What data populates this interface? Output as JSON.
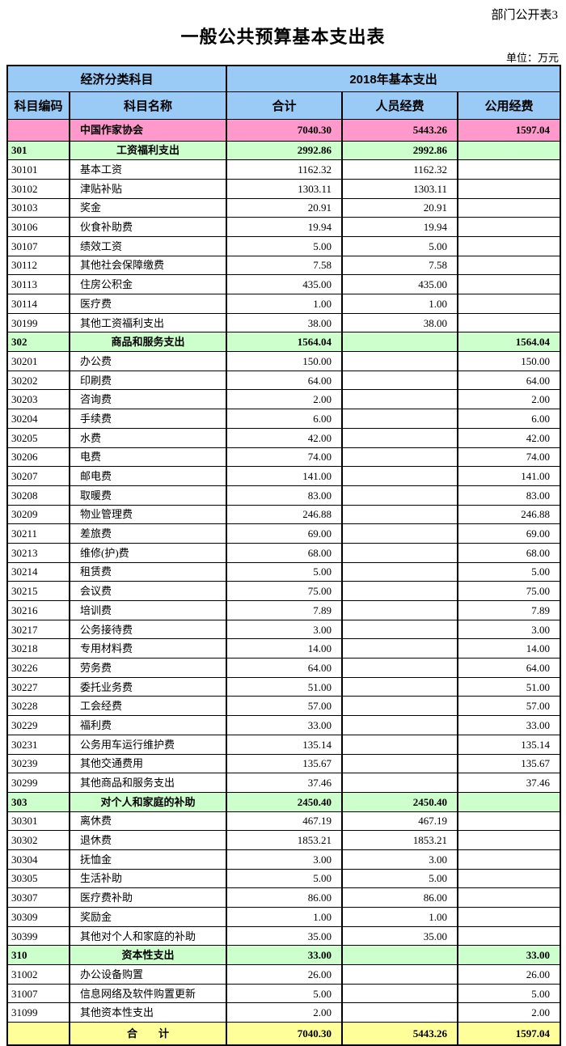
{
  "page": {
    "doc_label": "部门公开表3",
    "title": "一般公共预算基本支出表",
    "unit_note": "单位：万元"
  },
  "table": {
    "colors": {
      "header_bg": "#9ACBF7",
      "unit_bg": "#FF99CC",
      "section_bg": "#CCFFCC",
      "total_bg": "#FFFF99",
      "border": "#000000"
    },
    "header": {
      "group_left": "经济分类科目",
      "group_right": "2018年基本支出",
      "columns": [
        "科目编码",
        "科目名称",
        "合计",
        "人员经费",
        "公用经费"
      ]
    },
    "rows": [
      {
        "type": "unit",
        "code": "",
        "name": "中国作家协会",
        "total": "7040.30",
        "personnel": "5443.26",
        "public": "1597.04"
      },
      {
        "type": "section",
        "code": "301",
        "name": "工资福利支出",
        "total": "2992.86",
        "personnel": "2992.86",
        "public": ""
      },
      {
        "type": "item",
        "code": "30101",
        "name": "基本工资",
        "total": "1162.32",
        "personnel": "1162.32",
        "public": ""
      },
      {
        "type": "item",
        "code": "30102",
        "name": "津贴补贴",
        "total": "1303.11",
        "personnel": "1303.11",
        "public": ""
      },
      {
        "type": "item",
        "code": "30103",
        "name": "奖金",
        "total": "20.91",
        "personnel": "20.91",
        "public": ""
      },
      {
        "type": "item",
        "code": "30106",
        "name": "伙食补助费",
        "total": "19.94",
        "personnel": "19.94",
        "public": ""
      },
      {
        "type": "item",
        "code": "30107",
        "name": "绩效工资",
        "total": "5.00",
        "personnel": "5.00",
        "public": ""
      },
      {
        "type": "item",
        "code": "30112",
        "name": "其他社会保障缴费",
        "total": "7.58",
        "personnel": "7.58",
        "public": ""
      },
      {
        "type": "item",
        "code": "30113",
        "name": "住房公积金",
        "total": "435.00",
        "personnel": "435.00",
        "public": ""
      },
      {
        "type": "item",
        "code": "30114",
        "name": "医疗费",
        "total": "1.00",
        "personnel": "1.00",
        "public": ""
      },
      {
        "type": "item",
        "code": "30199",
        "name": "其他工资福利支出",
        "total": "38.00",
        "personnel": "38.00",
        "public": ""
      },
      {
        "type": "section",
        "code": "302",
        "name": "商品和服务支出",
        "total": "1564.04",
        "personnel": "",
        "public": "1564.04"
      },
      {
        "type": "item",
        "code": "30201",
        "name": "办公费",
        "total": "150.00",
        "personnel": "",
        "public": "150.00"
      },
      {
        "type": "item",
        "code": "30202",
        "name": "印刷费",
        "total": "64.00",
        "personnel": "",
        "public": "64.00"
      },
      {
        "type": "item",
        "code": "30203",
        "name": "咨询费",
        "total": "2.00",
        "personnel": "",
        "public": "2.00"
      },
      {
        "type": "item",
        "code": "30204",
        "name": "手续费",
        "total": "6.00",
        "personnel": "",
        "public": "6.00"
      },
      {
        "type": "item",
        "code": "30205",
        "name": "水费",
        "total": "42.00",
        "personnel": "",
        "public": "42.00"
      },
      {
        "type": "item",
        "code": "30206",
        "name": "电费",
        "total": "74.00",
        "personnel": "",
        "public": "74.00"
      },
      {
        "type": "item",
        "code": "30207",
        "name": "邮电费",
        "total": "141.00",
        "personnel": "",
        "public": "141.00"
      },
      {
        "type": "item",
        "code": "30208",
        "name": "取暖费",
        "total": "83.00",
        "personnel": "",
        "public": "83.00"
      },
      {
        "type": "item",
        "code": "30209",
        "name": "物业管理费",
        "total": "246.88",
        "personnel": "",
        "public": "246.88"
      },
      {
        "type": "item",
        "code": "30211",
        "name": "差旅费",
        "total": "69.00",
        "personnel": "",
        "public": "69.00"
      },
      {
        "type": "item",
        "code": "30213",
        "name": "维修(护)费",
        "total": "68.00",
        "personnel": "",
        "public": "68.00"
      },
      {
        "type": "item",
        "code": "30214",
        "name": "租赁费",
        "total": "5.00",
        "personnel": "",
        "public": "5.00"
      },
      {
        "type": "item",
        "code": "30215",
        "name": "会议费",
        "total": "75.00",
        "personnel": "",
        "public": "75.00"
      },
      {
        "type": "item",
        "code": "30216",
        "name": "培训费",
        "total": "7.89",
        "personnel": "",
        "public": "7.89"
      },
      {
        "type": "item",
        "code": "30217",
        "name": "公务接待费",
        "total": "3.00",
        "personnel": "",
        "public": "3.00"
      },
      {
        "type": "item",
        "code": "30218",
        "name": "专用材料费",
        "total": "14.00",
        "personnel": "",
        "public": "14.00"
      },
      {
        "type": "item",
        "code": "30226",
        "name": "劳务费",
        "total": "64.00",
        "personnel": "",
        "public": "64.00"
      },
      {
        "type": "item",
        "code": "30227",
        "name": "委托业务费",
        "total": "51.00",
        "personnel": "",
        "public": "51.00"
      },
      {
        "type": "item",
        "code": "30228",
        "name": "工会经费",
        "total": "57.00",
        "personnel": "",
        "public": "57.00"
      },
      {
        "type": "item",
        "code": "30229",
        "name": "福利费",
        "total": "33.00",
        "personnel": "",
        "public": "33.00"
      },
      {
        "type": "item",
        "code": "30231",
        "name": "公务用车运行维护费",
        "total": "135.14",
        "personnel": "",
        "public": "135.14"
      },
      {
        "type": "item",
        "code": "30239",
        "name": "其他交通费用",
        "total": "135.67",
        "personnel": "",
        "public": "135.67"
      },
      {
        "type": "item",
        "code": "30299",
        "name": "其他商品和服务支出",
        "total": "37.46",
        "personnel": "",
        "public": "37.46"
      },
      {
        "type": "section",
        "code": "303",
        "name": "对个人和家庭的补助",
        "total": "2450.40",
        "personnel": "2450.40",
        "public": ""
      },
      {
        "type": "item",
        "code": "30301",
        "name": "离休费",
        "total": "467.19",
        "personnel": "467.19",
        "public": ""
      },
      {
        "type": "item",
        "code": "30302",
        "name": "退休费",
        "total": "1853.21",
        "personnel": "1853.21",
        "public": ""
      },
      {
        "type": "item",
        "code": "30304",
        "name": "抚恤金",
        "total": "3.00",
        "personnel": "3.00",
        "public": ""
      },
      {
        "type": "item",
        "code": "30305",
        "name": "生活补助",
        "total": "5.00",
        "personnel": "5.00",
        "public": ""
      },
      {
        "type": "item",
        "code": "30307",
        "name": "医疗费补助",
        "total": "86.00",
        "personnel": "86.00",
        "public": ""
      },
      {
        "type": "item",
        "code": "30309",
        "name": "奖励金",
        "total": "1.00",
        "personnel": "1.00",
        "public": ""
      },
      {
        "type": "item",
        "code": "30399",
        "name": "其他对个人和家庭的补助",
        "total": "35.00",
        "personnel": "35.00",
        "public": ""
      },
      {
        "type": "section",
        "code": "310",
        "name": "资本性支出",
        "total": "33.00",
        "personnel": "",
        "public": "33.00"
      },
      {
        "type": "item",
        "code": "31002",
        "name": "办公设备购置",
        "total": "26.00",
        "personnel": "",
        "public": "26.00"
      },
      {
        "type": "item",
        "code": "31007",
        "name": "信息网络及软件购置更新",
        "total": "5.00",
        "personnel": "",
        "public": "5.00"
      },
      {
        "type": "item",
        "code": "31099",
        "name": "其他资本性支出",
        "total": "2.00",
        "personnel": "",
        "public": "2.00"
      },
      {
        "type": "total",
        "code": "",
        "name": "合　　计",
        "total": "7040.30",
        "personnel": "5443.26",
        "public": "1597.04"
      }
    ]
  }
}
